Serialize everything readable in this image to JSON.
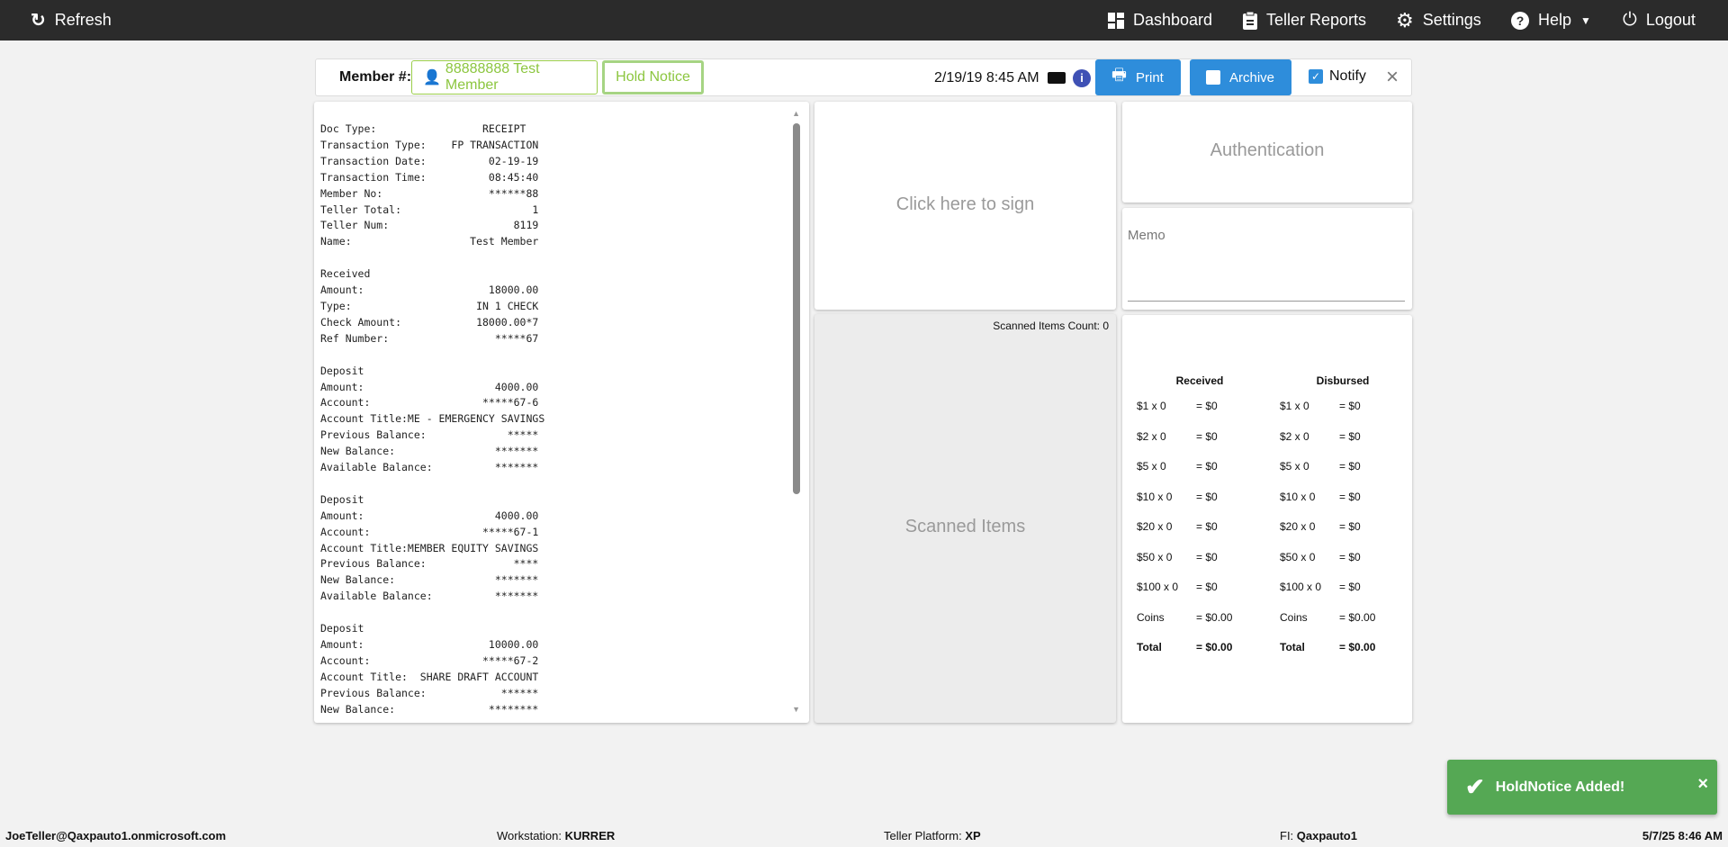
{
  "topbar": {
    "refresh": "Refresh",
    "dashboard": "Dashboard",
    "teller_reports": "Teller Reports",
    "settings": "Settings",
    "help": "Help",
    "logout": "Logout"
  },
  "member_bar": {
    "label": "Member #:",
    "member": "88888888 Test Member",
    "hold_notice": "Hold Notice",
    "datetime": "2/19/19 8:45 AM",
    "print": "Print",
    "archive": "Archive",
    "notify": "Notify",
    "notify_checked": true
  },
  "receipt": {
    "text": "Doc Type:                 RECEIPT\nTransaction Type:    FP TRANSACTION\nTransaction Date:          02-19-19\nTransaction Time:          08:45:40\nMember No:                 ******88\nTeller Total:                     1\nTeller Num:                    8119\nName:                   Test Member\n\nReceived\nAmount:                    18000.00\nType:                    IN 1 CHECK\nCheck Amount:            18000.00*7\nRef Number:                 *****67\n\nDeposit\nAmount:                     4000.00\nAccount:                  *****67-6\nAccount Title:ME - EMERGENCY SAVINGS\nPrevious Balance:             *****\nNew Balance:                *******\nAvailable Balance:          *******\n\nDeposit\nAmount:                     4000.00\nAccount:                  *****67-1\nAccount Title:MEMBER EQUITY SAVINGS\nPrevious Balance:              ****\nNew Balance:                *******\nAvailable Balance:          *******\n\nDeposit\nAmount:                    10000.00\nAccount:                  *****67-2\nAccount Title:  SHARE DRAFT ACCOUNT\nPrevious Balance:            ******\nNew Balance:               ********"
  },
  "sign": "Click here to sign",
  "scanned": {
    "count_label": "Scanned Items Count: 0",
    "title": "Scanned Items"
  },
  "authentication": "Authentication",
  "memo": {
    "placeholder": "Memo"
  },
  "denominations": {
    "received": {
      "header": "Received",
      "rows": [
        [
          "$1 x 0",
          "= $0"
        ],
        [
          "$2 x 0",
          "= $0"
        ],
        [
          "$5 x 0",
          "= $0"
        ],
        [
          "$10 x 0",
          "= $0"
        ],
        [
          "$20 x 0",
          "= $0"
        ],
        [
          "$50 x 0",
          "= $0"
        ],
        [
          "$100 x 0",
          "= $0"
        ],
        [
          "Coins",
          "= $0.00"
        ]
      ],
      "total": [
        "Total",
        "= $0.00"
      ]
    },
    "disbursed": {
      "header": "Disbursed",
      "rows": [
        [
          "$1 x 0",
          "= $0"
        ],
        [
          "$2 x 0",
          "= $0"
        ],
        [
          "$5 x 0",
          "= $0"
        ],
        [
          "$10 x 0",
          "= $0"
        ],
        [
          "$20 x 0",
          "= $0"
        ],
        [
          "$50 x 0",
          "= $0"
        ],
        [
          "$100 x 0",
          "= $0"
        ],
        [
          "Coins",
          "= $0.00"
        ]
      ],
      "total": [
        "Total",
        "= $0.00"
      ]
    }
  },
  "toast": {
    "message": "HoldNotice Added!",
    "close": "×"
  },
  "footer": {
    "user": "JoeTeller@Qaxpauto1.onmicrosoft.com",
    "workstation_label": "Workstation:",
    "workstation": "KURRER",
    "platform_label": "Teller Platform:",
    "platform": "XP",
    "fi_label": "FI:",
    "fi": "Qaxpauto1",
    "datetime": "5/7/25 8:46 AM"
  },
  "colors": {
    "topbar": "#2b2b2b",
    "accent_blue": "#2e8ddb",
    "member_green": "#8cc63f",
    "toast_green": "#55a854"
  }
}
